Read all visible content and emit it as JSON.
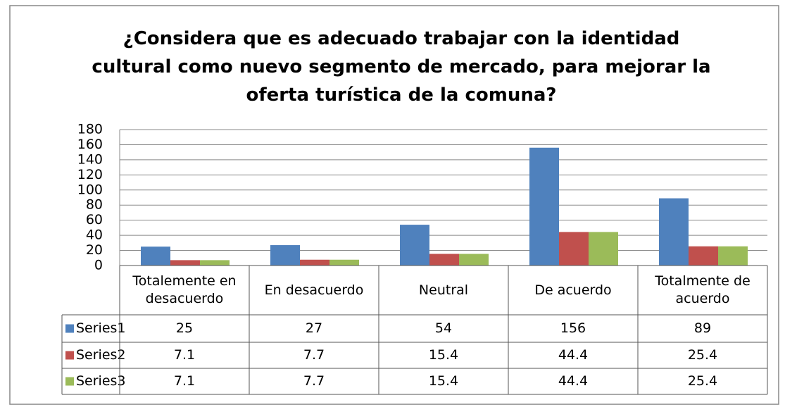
{
  "chart_data": {
    "type": "bar",
    "title": "¿Considera que es adecuado trabajar con la identidad cultural como nuevo segmento de mercado, para mejorar la oferta turística de la comuna?",
    "categories": [
      "Totalemente en desacuerdo",
      "En desacuerdo",
      "Neutral",
      "De acuerdo",
      "Totalmente de acuerdo"
    ],
    "series": [
      {
        "name": "Series1",
        "color": "#4f81bd",
        "values": [
          25,
          27,
          54,
          156,
          89
        ]
      },
      {
        "name": "Series2",
        "color": "#c0504d",
        "values": [
          7.1,
          7.7,
          15.4,
          44.4,
          25.4
        ]
      },
      {
        "name": "Series3",
        "color": "#9bbb59",
        "values": [
          7.1,
          7.7,
          15.4,
          44.4,
          25.4
        ]
      }
    ],
    "ylim": [
      0,
      180
    ],
    "yticks": [
      0,
      20,
      40,
      60,
      80,
      100,
      120,
      140,
      160,
      180
    ],
    "grid": true
  }
}
